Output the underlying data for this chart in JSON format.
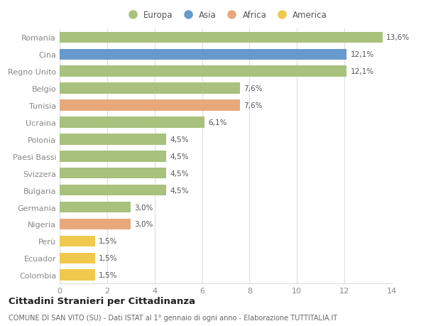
{
  "countries": [
    "Romania",
    "Cina",
    "Regno Unito",
    "Belgio",
    "Tunisia",
    "Ucraina",
    "Polonia",
    "Paesi Bassi",
    "Svizzera",
    "Bulgaria",
    "Germania",
    "Nigeria",
    "Perù",
    "Ecuador",
    "Colombia"
  ],
  "values": [
    13.6,
    12.1,
    12.1,
    7.6,
    7.6,
    6.1,
    4.5,
    4.5,
    4.5,
    4.5,
    3.0,
    3.0,
    1.5,
    1.5,
    1.5
  ],
  "labels": [
    "13,6%",
    "12,1%",
    "12,1%",
    "7,6%",
    "7,6%",
    "6,1%",
    "4,5%",
    "4,5%",
    "4,5%",
    "4,5%",
    "3,0%",
    "3,0%",
    "1,5%",
    "1,5%",
    "1,5%"
  ],
  "continents": [
    "Europa",
    "Asia",
    "Europa",
    "Europa",
    "Africa",
    "Europa",
    "Europa",
    "Europa",
    "Europa",
    "Europa",
    "Europa",
    "Africa",
    "America",
    "America",
    "America"
  ],
  "colors": {
    "Europa": "#a8c17c",
    "Asia": "#6699cc",
    "Africa": "#e8a87c",
    "America": "#f0c84e"
  },
  "legend_order": [
    "Europa",
    "Asia",
    "Africa",
    "America"
  ],
  "title": "Cittadini Stranieri per Cittadinanza",
  "subtitle": "COMUNE DI SAN VITO (SU) - Dati ISTAT al 1° gennaio di ogni anno - Elaborazione TUTTITALIA.IT",
  "xlim": [
    0,
    14
  ],
  "xticks": [
    0,
    2,
    4,
    6,
    8,
    10,
    12,
    14
  ],
  "background_color": "#ffffff",
  "grid_color": "#dddddd"
}
